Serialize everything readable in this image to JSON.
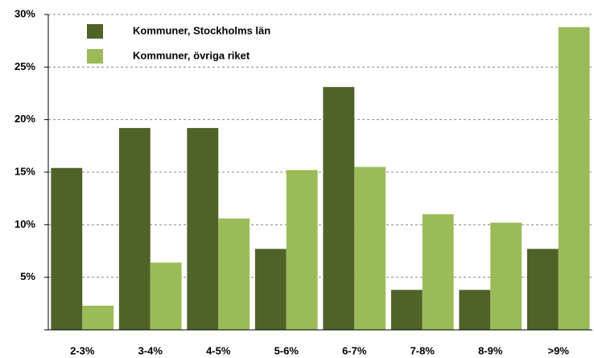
{
  "chart_data": {
    "type": "bar",
    "categories": [
      "2-3%",
      "3-4%",
      "4-5%",
      "5-6%",
      "6-7%",
      "7-8%",
      "8-9%",
      ">9%"
    ],
    "series": [
      {
        "name": "Kommuner, Stockholms län",
        "color": "#4f6228",
        "values": [
          15.4,
          19.2,
          19.2,
          7.7,
          23.1,
          3.8,
          3.8,
          7.7
        ]
      },
      {
        "name": "Kommuner, övriga riket",
        "color": "#9bbb59",
        "values": [
          2.3,
          6.4,
          10.6,
          15.2,
          15.5,
          11.0,
          10.2,
          28.8
        ]
      }
    ],
    "ylim": [
      0,
      30
    ],
    "yticks": [
      {
        "value": 5,
        "label": "5%"
      },
      {
        "value": 10,
        "label": "10%"
      },
      {
        "value": 15,
        "label": "15%"
      },
      {
        "value": 20,
        "label": "20%"
      },
      {
        "value": 25,
        "label": "25%"
      },
      {
        "value": 30,
        "label": "30%"
      }
    ],
    "grid": true
  }
}
